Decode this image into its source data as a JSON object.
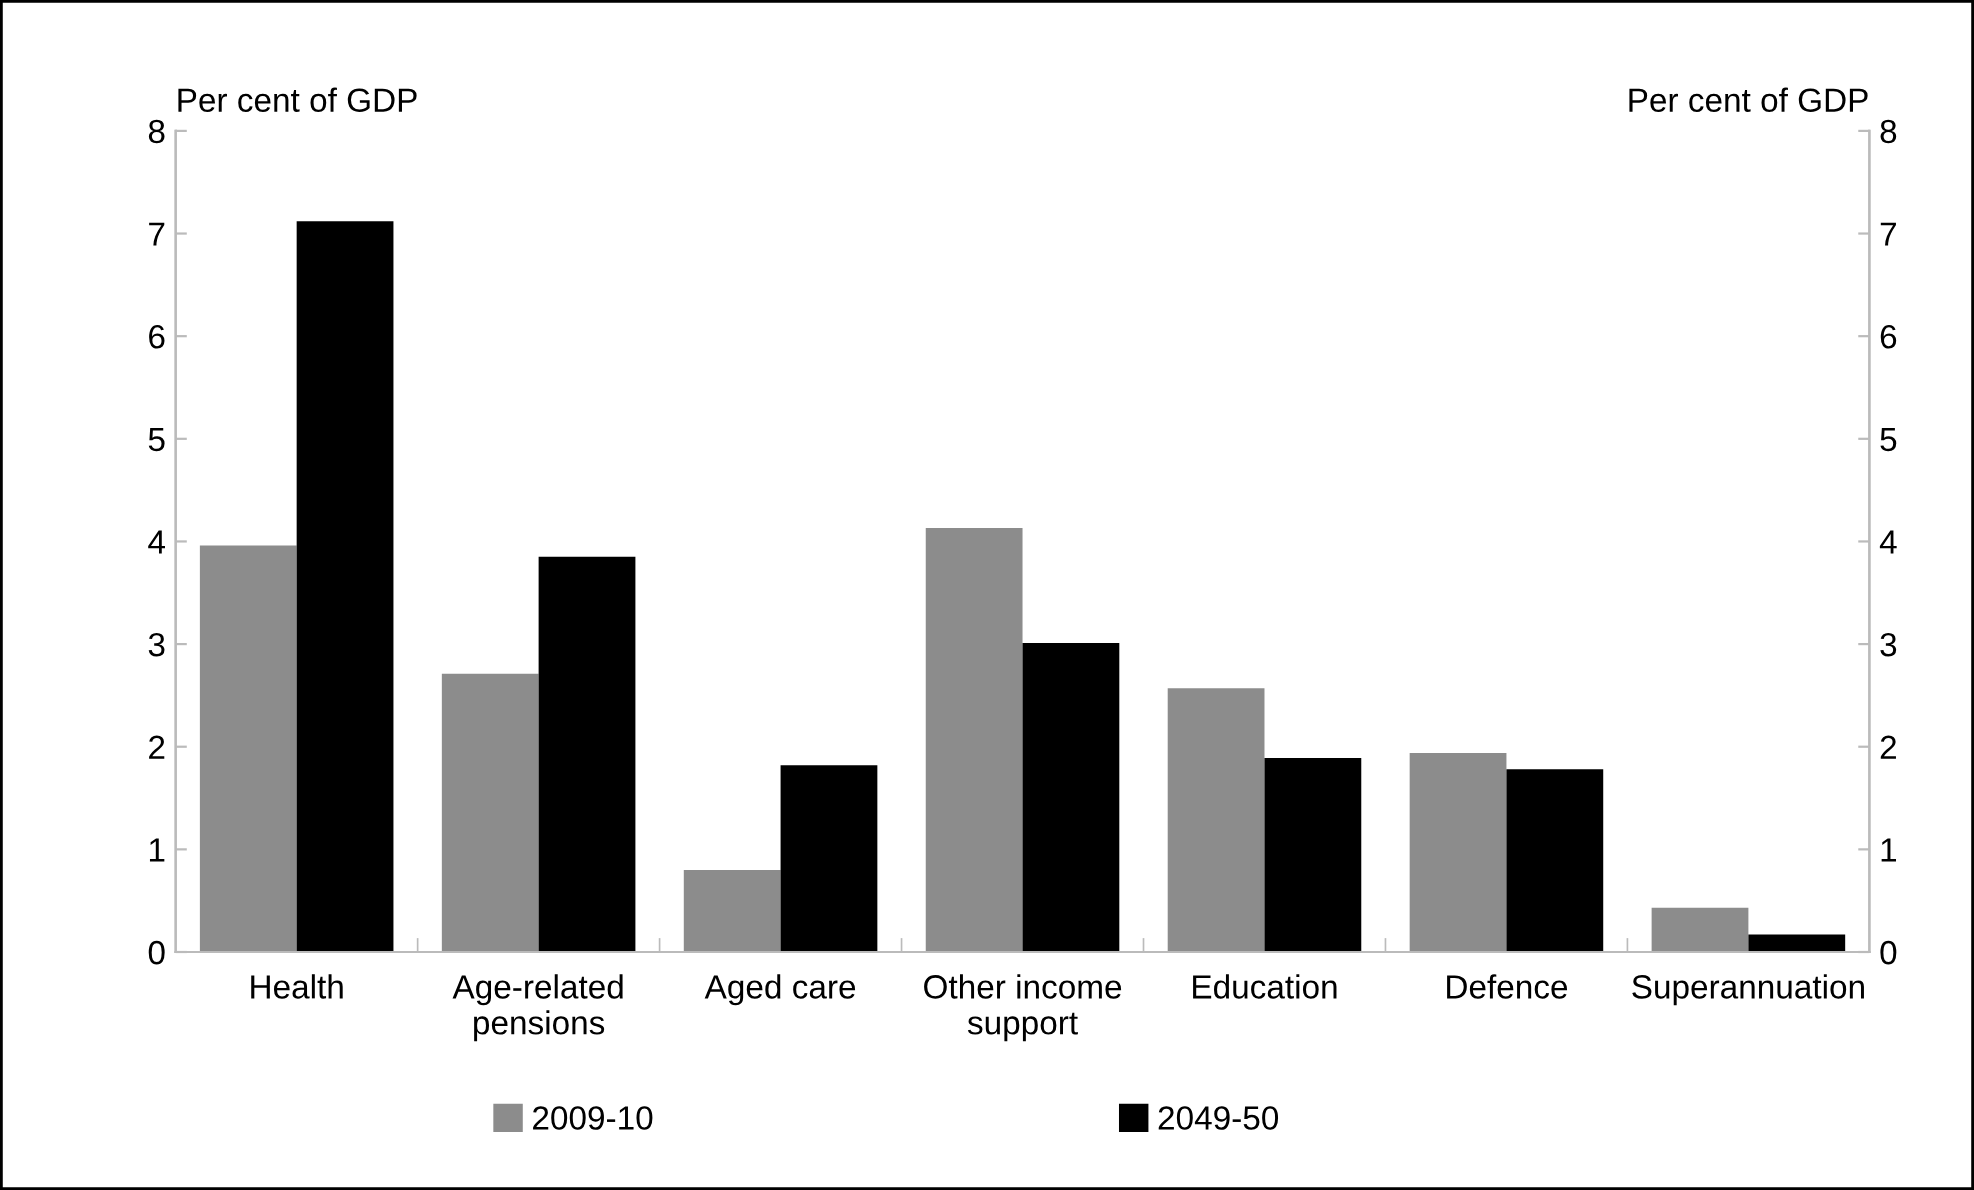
{
  "chart_data": {
    "type": "bar",
    "categories": [
      "Health",
      "Age-related\npensions",
      "Aged care",
      "Other income\nsupport",
      "Education",
      "Defence",
      "Superannuation"
    ],
    "series": [
      {
        "name": "2009-10",
        "color": "#8c8c8c",
        "values": [
          3.96,
          2.71,
          0.8,
          4.13,
          2.57,
          1.94,
          0.43
        ]
      },
      {
        "name": "2049-50",
        "color": "#000000",
        "values": [
          7.12,
          3.85,
          1.82,
          3.01,
          1.89,
          1.78,
          0.17
        ]
      }
    ],
    "ylabel": "Per cent of GDP",
    "y2label": "Per cent of GDP",
    "ylim": [
      0,
      8
    ],
    "yticks": [
      0,
      1,
      2,
      3,
      4,
      5,
      6,
      7,
      8
    ],
    "y2lim": [
      0,
      8
    ],
    "y2ticks": [
      0,
      1,
      2,
      3,
      4,
      5,
      6,
      7,
      8
    ],
    "grid": false,
    "legend": "bottom"
  }
}
